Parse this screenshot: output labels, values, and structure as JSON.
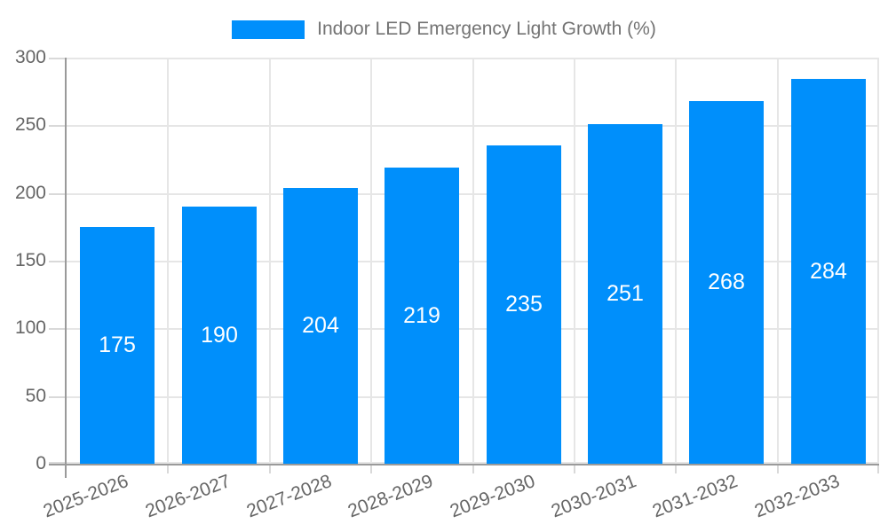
{
  "legend": {
    "series_label": "Indoor LED Emergency Light Growth (%)"
  },
  "chart_data": {
    "type": "bar",
    "title": "Indoor LED Emergency Light Growth (%)",
    "series_name": "Indoor LED Emergency Light Growth (%)",
    "categories": [
      "2025-2026",
      "2026-2027",
      "2027-2028",
      "2028-2029",
      "2029-2030",
      "2030-2031",
      "2031-2032",
      "2032-2033"
    ],
    "values": [
      175,
      190,
      204,
      219,
      235,
      251,
      268,
      284
    ],
    "data_labels": [
      "175",
      "190",
      "204",
      "219",
      "235",
      "251",
      "268",
      "284"
    ],
    "xlabel": "",
    "ylabel": "",
    "ylim": [
      0,
      300
    ],
    "ytick_step": 50,
    "yticks": [
      "0",
      "50",
      "100",
      "150",
      "200",
      "250",
      "300"
    ],
    "grid": true,
    "legend_position": "top",
    "x_label_rotation_deg": -21,
    "colors": {
      "bar": "#008FFB",
      "grid": "#e6e6e6",
      "tick": "#d9d9d9",
      "axis": "#9a9a9a",
      "axis_text": "#666666",
      "legend_text": "#737373",
      "value_label": "#ffffff",
      "background": "#ffffff"
    }
  }
}
